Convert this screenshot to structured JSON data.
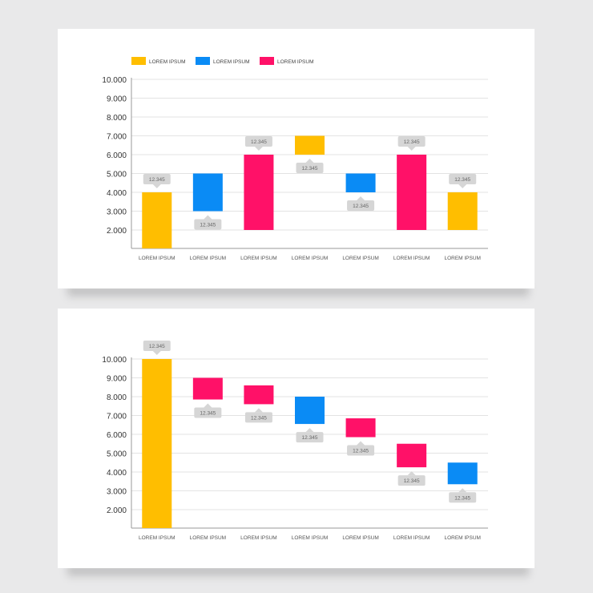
{
  "chart_data": [
    {
      "type": "bar",
      "subtype": "floating",
      "legend": [
        {
          "label": "LOREM IPSUM",
          "color": "#FFBE00"
        },
        {
          "label": "LOREM IPSUM",
          "color": "#0A8BF5"
        },
        {
          "label": "LOREM IPSUM",
          "color": "#FF1168"
        }
      ],
      "yticks": [
        "10.000",
        "9.000",
        "8.000",
        "7.000",
        "6.000",
        "5.000",
        "4.000",
        "3.000",
        "2.000"
      ],
      "ylim": [
        1000,
        10000
      ],
      "categories": [
        "LOREM IPSUM",
        "LOREM IPSUM",
        "LOREM IPSUM",
        "LOREM IPSUM",
        "LOREM IPSUM",
        "LOREM IPSUM",
        "LOREM IPSUM"
      ],
      "bars": [
        {
          "low": 1000,
          "high": 4000,
          "color": "#FFBE00",
          "label": "12.345",
          "label_pos": "above"
        },
        {
          "low": 3000,
          "high": 5000,
          "color": "#0A8BF5",
          "label": "12.345",
          "label_pos": "below"
        },
        {
          "low": 2000,
          "high": 6000,
          "color": "#FF1168",
          "label": "12.345",
          "label_pos": "above"
        },
        {
          "low": 6000,
          "high": 7000,
          "color": "#FFBE00",
          "label": "12.345",
          "label_pos": "below"
        },
        {
          "low": 4000,
          "high": 5000,
          "color": "#0A8BF5",
          "label": "12.345",
          "label_pos": "below"
        },
        {
          "low": 2000,
          "high": 6000,
          "color": "#FF1168",
          "label": "12.345",
          "label_pos": "above"
        },
        {
          "low": 2000,
          "high": 4000,
          "color": "#FFBE00",
          "label": "12.345",
          "label_pos": "above"
        }
      ]
    },
    {
      "type": "bar",
      "subtype": "waterfall",
      "yticks": [
        "10.000",
        "9.000",
        "8.000",
        "7.000",
        "6.000",
        "5.000",
        "4.000",
        "3.000",
        "2.000"
      ],
      "ylim": [
        1000,
        10000
      ],
      "categories": [
        "LOREM IPSUM",
        "LOREM IPSUM",
        "LOREM IPSUM",
        "LOREM IPSUM",
        "LOREM IPSUM",
        "LOREM IPSUM",
        "LOREM IPSUM"
      ],
      "bars": [
        {
          "low": 1000,
          "high": 10000,
          "color": "#FFBE00",
          "label": "12.345",
          "label_pos": "above"
        },
        {
          "low": 7850,
          "high": 9000,
          "color": "#FF1168",
          "label": "12.345",
          "label_pos": "below"
        },
        {
          "low": 7600,
          "high": 8600,
          "color": "#FF1168",
          "label": "12.345",
          "label_pos": "below"
        },
        {
          "low": 6550,
          "high": 8000,
          "color": "#0A8BF5",
          "label": "12.345",
          "label_pos": "below"
        },
        {
          "low": 5850,
          "high": 6850,
          "color": "#FF1168",
          "label": "12.345",
          "label_pos": "below"
        },
        {
          "low": 4250,
          "high": 5500,
          "color": "#FF1168",
          "label": "12.345",
          "label_pos": "below"
        },
        {
          "low": 3350,
          "high": 4500,
          "color": "#0A8BF5",
          "label": "12.345",
          "label_pos": "below"
        }
      ]
    }
  ]
}
